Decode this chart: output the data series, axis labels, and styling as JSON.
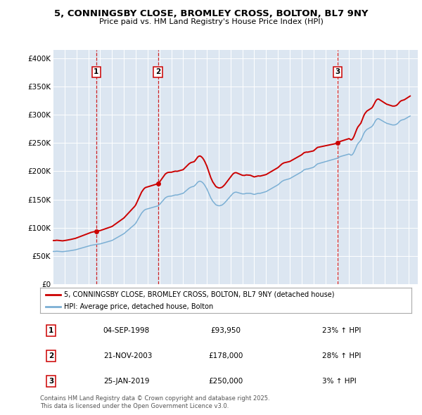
{
  "title": "5, CONNINGSBY CLOSE, BROMLEY CROSS, BOLTON, BL7 9NY",
  "subtitle": "Price paid vs. HM Land Registry's House Price Index (HPI)",
  "ylabel_ticks": [
    "£0",
    "£50K",
    "£100K",
    "£150K",
    "£200K",
    "£250K",
    "£300K",
    "£350K",
    "£400K"
  ],
  "ytick_values": [
    0,
    50000,
    100000,
    150000,
    200000,
    250000,
    300000,
    350000,
    400000
  ],
  "ylim": [
    0,
    415000
  ],
  "xlim_start": 1995.0,
  "xlim_end": 2025.8,
  "sale_dates_float": [
    1998.667,
    2003.875,
    2019.042
  ],
  "sale_prices": [
    93950,
    178000,
    250000
  ],
  "sale_labels": [
    "1",
    "2",
    "3"
  ],
  "sale_info": [
    {
      "label": "1",
      "date": "04-SEP-1998",
      "price": "£93,950",
      "change": "23% ↑ HPI"
    },
    {
      "label": "2",
      "date": "21-NOV-2003",
      "price": "£178,000",
      "change": "28% ↑ HPI"
    },
    {
      "label": "3",
      "date": "25-JAN-2019",
      "price": "£250,000",
      "change": "3% ↑ HPI"
    }
  ],
  "property_line_color": "#cc0000",
  "hpi_line_color": "#7bafd4",
  "sale_marker_color": "#cc0000",
  "vline_color": "#cc0000",
  "plot_bg_color": "#dce6f1",
  "legend_label_property": "5, CONNINGSBY CLOSE, BROMLEY CROSS, BOLTON, BL7 9NY (detached house)",
  "legend_label_hpi": "HPI: Average price, detached house, Bolton",
  "footer_text": "Contains HM Land Registry data © Crown copyright and database right 2025.\nThis data is licensed under the Open Government Licence v3.0.",
  "hpi_data": {
    "1995.000": 58000,
    "1995.083": 58200,
    "1995.167": 58100,
    "1995.250": 58300,
    "1995.333": 58500,
    "1995.417": 58400,
    "1995.500": 58200,
    "1995.583": 58100,
    "1995.667": 57900,
    "1995.750": 57800,
    "1995.833": 57700,
    "1995.917": 57900,
    "1996.000": 58100,
    "1996.083": 58300,
    "1996.167": 58500,
    "1996.250": 58800,
    "1996.333": 59000,
    "1996.417": 59200,
    "1996.500": 59500,
    "1996.583": 59800,
    "1996.667": 60100,
    "1996.750": 60400,
    "1996.833": 60700,
    "1996.917": 61000,
    "1997.000": 61500,
    "1997.083": 62000,
    "1997.167": 62500,
    "1997.250": 63000,
    "1997.333": 63500,
    "1997.417": 64000,
    "1997.500": 64500,
    "1997.583": 65000,
    "1997.667": 65500,
    "1997.750": 66000,
    "1997.833": 66500,
    "1997.917": 67000,
    "1998.000": 67500,
    "1998.083": 68000,
    "1998.167": 68500,
    "1998.250": 69000,
    "1998.333": 69300,
    "1998.417": 69600,
    "1998.500": 69900,
    "1998.583": 70200,
    "1998.667": 70500,
    "1998.750": 70800,
    "1998.833": 71000,
    "1998.917": 71200,
    "1999.000": 71500,
    "1999.083": 72000,
    "1999.167": 72500,
    "1999.250": 73000,
    "1999.333": 73500,
    "1999.417": 74000,
    "1999.500": 74500,
    "1999.583": 75000,
    "1999.667": 75500,
    "1999.750": 76000,
    "1999.833": 76500,
    "1999.917": 77000,
    "2000.000": 77500,
    "2000.083": 78500,
    "2000.167": 79500,
    "2000.250": 80500,
    "2000.333": 81500,
    "2000.417": 82500,
    "2000.500": 83500,
    "2000.583": 84500,
    "2000.667": 85500,
    "2000.750": 86500,
    "2000.833": 87500,
    "2000.917": 88500,
    "2001.000": 89500,
    "2001.083": 91000,
    "2001.167": 92500,
    "2001.250": 94000,
    "2001.333": 95500,
    "2001.417": 97000,
    "2001.500": 98500,
    "2001.583": 100000,
    "2001.667": 101500,
    "2001.750": 103000,
    "2001.833": 104500,
    "2001.917": 106000,
    "2002.000": 108000,
    "2002.083": 111000,
    "2002.167": 114000,
    "2002.250": 117000,
    "2002.333": 120000,
    "2002.417": 123000,
    "2002.500": 126000,
    "2002.583": 128000,
    "2002.667": 130000,
    "2002.750": 131500,
    "2002.833": 132500,
    "2002.917": 133000,
    "2003.000": 133500,
    "2003.083": 134000,
    "2003.167": 134500,
    "2003.250": 135000,
    "2003.333": 135500,
    "2003.417": 136000,
    "2003.500": 136500,
    "2003.583": 137000,
    "2003.667": 137500,
    "2003.750": 138000,
    "2003.833": 138500,
    "2003.917": 139000,
    "2004.000": 141000,
    "2004.083": 143000,
    "2004.167": 145000,
    "2004.250": 147000,
    "2004.333": 149000,
    "2004.417": 151000,
    "2004.500": 153000,
    "2004.583": 154000,
    "2004.667": 155000,
    "2004.750": 155500,
    "2004.833": 155800,
    "2004.917": 156000,
    "2005.000": 156000,
    "2005.083": 156500,
    "2005.167": 157000,
    "2005.250": 157500,
    "2005.333": 158000,
    "2005.417": 158000,
    "2005.500": 158000,
    "2005.583": 158500,
    "2005.667": 159000,
    "2005.750": 159500,
    "2005.833": 160000,
    "2005.917": 160500,
    "2006.000": 161000,
    "2006.083": 162500,
    "2006.167": 164000,
    "2006.250": 165500,
    "2006.333": 167000,
    "2006.417": 168500,
    "2006.500": 170000,
    "2006.583": 171000,
    "2006.667": 172000,
    "2006.750": 172500,
    "2006.833": 173000,
    "2006.917": 173500,
    "2007.000": 175000,
    "2007.083": 177000,
    "2007.167": 179000,
    "2007.250": 181000,
    "2007.333": 182000,
    "2007.417": 182500,
    "2007.500": 182000,
    "2007.583": 181000,
    "2007.667": 179500,
    "2007.750": 177500,
    "2007.833": 175000,
    "2007.917": 172000,
    "2008.000": 169000,
    "2008.083": 165000,
    "2008.167": 161000,
    "2008.250": 157000,
    "2008.333": 153000,
    "2008.417": 150000,
    "2008.500": 147000,
    "2008.583": 145000,
    "2008.667": 143000,
    "2008.750": 141000,
    "2008.833": 140000,
    "2008.917": 139500,
    "2009.000": 139000,
    "2009.083": 139000,
    "2009.167": 139500,
    "2009.250": 140000,
    "2009.333": 141000,
    "2009.417": 142500,
    "2009.500": 144000,
    "2009.583": 146000,
    "2009.667": 148000,
    "2009.750": 150000,
    "2009.833": 152000,
    "2009.917": 154000,
    "2010.000": 156000,
    "2010.083": 158000,
    "2010.167": 160000,
    "2010.250": 161500,
    "2010.333": 162500,
    "2010.417": 163000,
    "2010.500": 163000,
    "2010.583": 162500,
    "2010.667": 162000,
    "2010.750": 161500,
    "2010.833": 161000,
    "2010.917": 160500,
    "2011.000": 160000,
    "2011.083": 160000,
    "2011.167": 160000,
    "2011.250": 160500,
    "2011.333": 161000,
    "2011.417": 161000,
    "2011.500": 161000,
    "2011.583": 161000,
    "2011.667": 161000,
    "2011.750": 160500,
    "2011.833": 160000,
    "2011.917": 159500,
    "2012.000": 159000,
    "2012.083": 159500,
    "2012.167": 160000,
    "2012.250": 160500,
    "2012.333": 161000,
    "2012.417": 161000,
    "2012.500": 161000,
    "2012.583": 161500,
    "2012.667": 162000,
    "2012.750": 162500,
    "2012.833": 163000,
    "2012.917": 163500,
    "2013.000": 164000,
    "2013.083": 165000,
    "2013.167": 166000,
    "2013.250": 167000,
    "2013.333": 168000,
    "2013.417": 169000,
    "2013.500": 170000,
    "2013.583": 171000,
    "2013.667": 172000,
    "2013.750": 173000,
    "2013.833": 174000,
    "2013.917": 175000,
    "2014.000": 176000,
    "2014.083": 177500,
    "2014.167": 179000,
    "2014.250": 180500,
    "2014.333": 182000,
    "2014.417": 183000,
    "2014.500": 184000,
    "2014.583": 184500,
    "2014.667": 185000,
    "2014.750": 185500,
    "2014.833": 186000,
    "2014.917": 186500,
    "2015.000": 187000,
    "2015.083": 188000,
    "2015.167": 189000,
    "2015.250": 190000,
    "2015.333": 191000,
    "2015.417": 192000,
    "2015.500": 193000,
    "2015.583": 194000,
    "2015.667": 195000,
    "2015.750": 196000,
    "2015.833": 197000,
    "2015.917": 198000,
    "2016.000": 199000,
    "2016.083": 200500,
    "2016.167": 202000,
    "2016.250": 203000,
    "2016.333": 203500,
    "2016.417": 204000,
    "2016.500": 204000,
    "2016.583": 204500,
    "2016.667": 205000,
    "2016.750": 205500,
    "2016.833": 206000,
    "2016.917": 206500,
    "2017.000": 207000,
    "2017.083": 208500,
    "2017.167": 210000,
    "2017.250": 211500,
    "2017.333": 213000,
    "2017.417": 213500,
    "2017.500": 214000,
    "2017.583": 214500,
    "2017.667": 215000,
    "2017.750": 215500,
    "2017.833": 216000,
    "2017.917": 216500,
    "2018.000": 217000,
    "2018.083": 217500,
    "2018.167": 218000,
    "2018.250": 218500,
    "2018.333": 219000,
    "2018.417": 219500,
    "2018.500": 220000,
    "2018.583": 220500,
    "2018.667": 221000,
    "2018.750": 221500,
    "2018.833": 222000,
    "2018.917": 222500,
    "2019.000": 223000,
    "2019.083": 224000,
    "2019.167": 225000,
    "2019.250": 226000,
    "2019.333": 226500,
    "2019.417": 227000,
    "2019.500": 227500,
    "2019.583": 228000,
    "2019.667": 228500,
    "2019.750": 229000,
    "2019.833": 229500,
    "2019.917": 230000,
    "2020.000": 230500,
    "2020.083": 229500,
    "2020.167": 228500,
    "2020.250": 229000,
    "2020.333": 231000,
    "2020.417": 234000,
    "2020.500": 238000,
    "2020.583": 242000,
    "2020.667": 246000,
    "2020.750": 249000,
    "2020.833": 251000,
    "2020.917": 253000,
    "2021.000": 255000,
    "2021.083": 259000,
    "2021.167": 263000,
    "2021.250": 267000,
    "2021.333": 270000,
    "2021.417": 272000,
    "2021.500": 274000,
    "2021.583": 275000,
    "2021.667": 276000,
    "2021.750": 277000,
    "2021.833": 278000,
    "2021.917": 279000,
    "2022.000": 281000,
    "2022.083": 284000,
    "2022.167": 287000,
    "2022.250": 290000,
    "2022.333": 292000,
    "2022.417": 293000,
    "2022.500": 293000,
    "2022.583": 292000,
    "2022.667": 291000,
    "2022.750": 290000,
    "2022.833": 289000,
    "2022.917": 288000,
    "2023.000": 287000,
    "2023.083": 286000,
    "2023.167": 285000,
    "2023.250": 284500,
    "2023.333": 284000,
    "2023.417": 283500,
    "2023.500": 283000,
    "2023.583": 282500,
    "2023.667": 282000,
    "2023.750": 282000,
    "2023.833": 282000,
    "2023.917": 282500,
    "2024.000": 283000,
    "2024.083": 284500,
    "2024.167": 286000,
    "2024.250": 288000,
    "2024.333": 289500,
    "2024.417": 290500,
    "2024.500": 291000,
    "2024.583": 291500,
    "2024.667": 292000,
    "2024.750": 293000,
    "2024.833": 294000,
    "2024.917": 295000,
    "2025.000": 296000,
    "2025.083": 297000,
    "2025.167": 298000
  }
}
